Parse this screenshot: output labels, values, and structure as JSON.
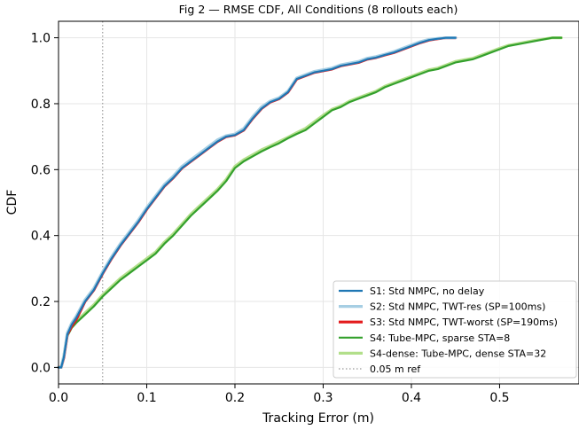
{
  "chart_data": {
    "type": "line",
    "title": "Fig 2 — RMSE CDF, All Conditions (8 rollouts each)",
    "xlabel": "Tracking Error (m)",
    "ylabel": "CDF",
    "xlim": [
      0.0,
      0.59
    ],
    "ylim": [
      -0.05,
      1.05
    ],
    "xticks": [
      0.0,
      0.1,
      0.2,
      0.3,
      0.4,
      0.5
    ],
    "xtick_labels": [
      "0.0",
      "0.1",
      "0.2",
      "0.3",
      "0.4",
      "0.5"
    ],
    "yticks": [
      0.0,
      0.2,
      0.4,
      0.6,
      0.8,
      1.0
    ],
    "ytick_labels": [
      "0.0",
      "0.2",
      "0.4",
      "0.6",
      "0.8",
      "1.0"
    ],
    "grid": true,
    "legend_position": "lower-right",
    "series": [
      {
        "name": "S1: Std NMPC, no delay",
        "color": "#1f77b4",
        "x": [
          0.0,
          0.003,
          0.006,
          0.01,
          0.015,
          0.02,
          0.03,
          0.04,
          0.05,
          0.06,
          0.07,
          0.08,
          0.09,
          0.1,
          0.11,
          0.12,
          0.13,
          0.14,
          0.15,
          0.16,
          0.17,
          0.18,
          0.19,
          0.2,
          0.21,
          0.22,
          0.23,
          0.24,
          0.25,
          0.26,
          0.27,
          0.28,
          0.29,
          0.3,
          0.31,
          0.32,
          0.33,
          0.34,
          0.35,
          0.36,
          0.37,
          0.38,
          0.39,
          0.4,
          0.41,
          0.42,
          0.43,
          0.44,
          0.45
        ],
        "y": [
          0.0,
          0.0,
          0.03,
          0.1,
          0.13,
          0.15,
          0.2,
          0.235,
          0.285,
          0.33,
          0.37,
          0.405,
          0.44,
          0.48,
          0.515,
          0.55,
          0.575,
          0.605,
          0.625,
          0.645,
          0.665,
          0.685,
          0.7,
          0.705,
          0.72,
          0.755,
          0.785,
          0.805,
          0.815,
          0.835,
          0.875,
          0.885,
          0.895,
          0.9,
          0.905,
          0.915,
          0.92,
          0.925,
          0.935,
          0.94,
          0.948,
          0.955,
          0.965,
          0.975,
          0.985,
          0.993,
          0.997,
          1.0,
          1.0
        ]
      },
      {
        "name": "S2: Std NMPC, TWT-res (SP=100ms)",
        "color": "#a6cee3",
        "x": [
          0.0,
          0.003,
          0.006,
          0.01,
          0.015,
          0.02,
          0.03,
          0.04,
          0.05,
          0.06,
          0.07,
          0.08,
          0.09,
          0.1,
          0.11,
          0.12,
          0.13,
          0.14,
          0.15,
          0.16,
          0.17,
          0.18,
          0.19,
          0.2,
          0.21,
          0.22,
          0.23,
          0.24,
          0.25,
          0.26,
          0.27,
          0.28,
          0.29,
          0.3,
          0.31,
          0.32,
          0.33,
          0.34,
          0.35,
          0.36,
          0.37,
          0.38,
          0.39,
          0.4,
          0.41,
          0.42,
          0.43,
          0.44,
          0.45
        ],
        "y": [
          0.0,
          0.0,
          0.035,
          0.105,
          0.135,
          0.155,
          0.205,
          0.24,
          0.29,
          0.335,
          0.375,
          0.41,
          0.445,
          0.485,
          0.52,
          0.555,
          0.58,
          0.61,
          0.63,
          0.65,
          0.67,
          0.69,
          0.703,
          0.708,
          0.725,
          0.76,
          0.79,
          0.808,
          0.818,
          0.838,
          0.878,
          0.888,
          0.898,
          0.903,
          0.908,
          0.918,
          0.923,
          0.928,
          0.938,
          0.943,
          0.95,
          0.958,
          0.968,
          0.978,
          0.988,
          0.995,
          0.998,
          1.0,
          1.0
        ]
      },
      {
        "name": "S3: Std NMPC, TWT-worst (SP=190ms)",
        "color": "#e31a1c",
        "x": [
          0.0,
          0.003,
          0.006,
          0.01,
          0.015,
          0.02,
          0.03,
          0.04,
          0.05,
          0.06,
          0.07,
          0.08,
          0.09,
          0.1,
          0.11,
          0.12,
          0.13,
          0.14,
          0.15,
          0.16,
          0.17,
          0.18,
          0.19,
          0.2,
          0.21,
          0.22,
          0.23,
          0.24,
          0.25,
          0.26,
          0.27,
          0.28,
          0.29,
          0.3,
          0.31,
          0.32,
          0.33,
          0.34,
          0.35,
          0.36,
          0.37,
          0.38,
          0.39,
          0.4,
          0.41,
          0.42,
          0.43,
          0.44,
          0.45
        ],
        "y": [
          0.0,
          0.0,
          0.03,
          0.1,
          0.125,
          0.145,
          0.2,
          0.235,
          0.285,
          0.33,
          0.37,
          0.405,
          0.44,
          0.48,
          0.515,
          0.55,
          0.575,
          0.605,
          0.625,
          0.645,
          0.665,
          0.685,
          0.7,
          0.705,
          0.72,
          0.755,
          0.785,
          0.805,
          0.815,
          0.835,
          0.875,
          0.885,
          0.895,
          0.9,
          0.905,
          0.915,
          0.92,
          0.925,
          0.935,
          0.94,
          0.948,
          0.955,
          0.965,
          0.975,
          0.985,
          0.993,
          0.997,
          1.0,
          1.0
        ]
      },
      {
        "name": "S4: Tube-MPC, sparse STA=8",
        "color": "#33a02c",
        "x": [
          0.0,
          0.003,
          0.006,
          0.01,
          0.015,
          0.02,
          0.03,
          0.04,
          0.05,
          0.06,
          0.07,
          0.08,
          0.09,
          0.1,
          0.11,
          0.12,
          0.13,
          0.14,
          0.15,
          0.16,
          0.17,
          0.18,
          0.19,
          0.2,
          0.21,
          0.22,
          0.23,
          0.24,
          0.25,
          0.26,
          0.27,
          0.28,
          0.29,
          0.3,
          0.31,
          0.32,
          0.33,
          0.34,
          0.35,
          0.36,
          0.37,
          0.38,
          0.39,
          0.4,
          0.41,
          0.42,
          0.43,
          0.44,
          0.45,
          0.46,
          0.47,
          0.48,
          0.49,
          0.5,
          0.51,
          0.52,
          0.53,
          0.54,
          0.55,
          0.56,
          0.57
        ],
        "y": [
          0.0,
          0.0,
          0.03,
          0.095,
          0.12,
          0.135,
          0.16,
          0.185,
          0.215,
          0.24,
          0.265,
          0.285,
          0.305,
          0.325,
          0.345,
          0.375,
          0.4,
          0.43,
          0.46,
          0.485,
          0.51,
          0.535,
          0.565,
          0.605,
          0.625,
          0.64,
          0.655,
          0.668,
          0.68,
          0.695,
          0.708,
          0.72,
          0.74,
          0.76,
          0.78,
          0.79,
          0.805,
          0.815,
          0.825,
          0.835,
          0.85,
          0.86,
          0.87,
          0.88,
          0.89,
          0.9,
          0.905,
          0.915,
          0.925,
          0.93,
          0.935,
          0.945,
          0.955,
          0.965,
          0.975,
          0.98,
          0.985,
          0.99,
          0.995,
          1.0,
          1.0
        ]
      },
      {
        "name": "S4-dense: Tube-MPC, dense STA=32",
        "color": "#b2df8a",
        "x": [
          0.0,
          0.003,
          0.006,
          0.01,
          0.015,
          0.02,
          0.03,
          0.04,
          0.05,
          0.06,
          0.07,
          0.08,
          0.09,
          0.1,
          0.11,
          0.12,
          0.13,
          0.14,
          0.15,
          0.16,
          0.17,
          0.18,
          0.19,
          0.2,
          0.21,
          0.22,
          0.23,
          0.24,
          0.25,
          0.26,
          0.27,
          0.28,
          0.29,
          0.3,
          0.31,
          0.32,
          0.33,
          0.34,
          0.35,
          0.36,
          0.37,
          0.38,
          0.39,
          0.4,
          0.41,
          0.42,
          0.43,
          0.44,
          0.45,
          0.46,
          0.47,
          0.48,
          0.49,
          0.5,
          0.51,
          0.52,
          0.53,
          0.54,
          0.55,
          0.56,
          0.57
        ],
        "y": [
          0.0,
          0.0,
          0.035,
          0.1,
          0.125,
          0.14,
          0.165,
          0.19,
          0.22,
          0.245,
          0.27,
          0.29,
          0.31,
          0.33,
          0.35,
          0.38,
          0.405,
          0.435,
          0.465,
          0.49,
          0.515,
          0.54,
          0.57,
          0.61,
          0.63,
          0.645,
          0.66,
          0.672,
          0.685,
          0.698,
          0.712,
          0.725,
          0.745,
          0.765,
          0.783,
          0.793,
          0.808,
          0.818,
          0.828,
          0.838,
          0.853,
          0.863,
          0.873,
          0.883,
          0.893,
          0.903,
          0.908,
          0.918,
          0.928,
          0.933,
          0.938,
          0.948,
          0.958,
          0.968,
          0.977,
          0.982,
          0.987,
          0.992,
          0.996,
          1.0,
          1.0
        ]
      }
    ],
    "reference_line": {
      "name": "0.05 m ref",
      "x": 0.05,
      "color": "#999999",
      "style": "dotted"
    }
  }
}
